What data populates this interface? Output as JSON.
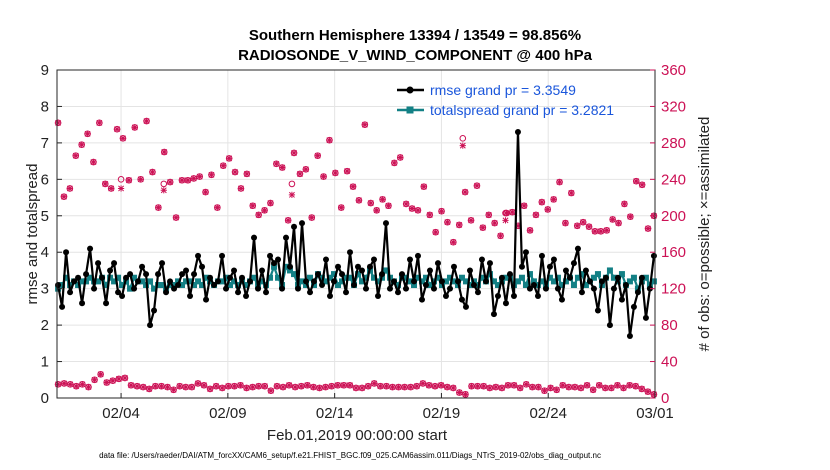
{
  "chart_data": {
    "type": "line",
    "title": "Southern Hemisphere 13394 / 13549 = 98.856%",
    "subtitle": "RADIOSONDE_V_WIND_COMPONENT @ 400 hPa",
    "xlabel": "Feb.01,2019 00:00:00 start",
    "ylabel": "rmse and totalspread",
    "y2label": "# of obs: o=possible; ×=assimilated",
    "footnote": "data file: /Users/raeder/DAI/ATM_forcXX/CAM6_setup/f.e21.FHIST_BGC.f09_025.CAM6assim.011/Diags_NTrS_2019-02/obs_diag_output.nc",
    "xlim": [
      1,
      29
    ],
    "ylim": [
      0,
      9
    ],
    "y2lim": [
      0,
      360
    ],
    "xticks": [
      {
        "value": 4,
        "label": "02/04"
      },
      {
        "value": 9,
        "label": "02/09"
      },
      {
        "value": 14,
        "label": "02/14"
      },
      {
        "value": 19,
        "label": "02/19"
      },
      {
        "value": 24,
        "label": "02/24"
      },
      {
        "value": 29,
        "label": "03/01"
      }
    ],
    "yticks": [
      0,
      1,
      2,
      3,
      4,
      5,
      6,
      7,
      8,
      9
    ],
    "y2ticks": [
      0,
      40,
      80,
      120,
      160,
      200,
      240,
      280,
      320,
      360
    ],
    "legend_position": "top-right",
    "series": [
      {
        "name": "rmse grand pr = 3.3549",
        "color": "#000000",
        "values": [
          3.1,
          2.5,
          4.0,
          2.9,
          3.2,
          3.3,
          2.6,
          3.4,
          4.1,
          3.0,
          3.7,
          3.3,
          2.6,
          3.5,
          3.7,
          2.9,
          2.8,
          3.3,
          3.4,
          3.0,
          3.2,
          3.6,
          3.4,
          2.0,
          2.4,
          3.4,
          3.7,
          2.9,
          3.2,
          3.0,
          3.1,
          3.4,
          3.5,
          2.8,
          3.4,
          3.9,
          3.6,
          2.7,
          3.3,
          3.1,
          3.2,
          3.9,
          3.0,
          3.3,
          3.5,
          2.9,
          3.3,
          2.8,
          3.2,
          4.4,
          3.0,
          3.5,
          2.9,
          3.9,
          3.7,
          3.8,
          3.0,
          4.4,
          3.6,
          4.7,
          3.0,
          4.8,
          3.2,
          2.9,
          3.2,
          3.4,
          3.1,
          3.8,
          2.8,
          3.2,
          3.6,
          3.4,
          2.9,
          4.0,
          3.1,
          3.6,
          3.5,
          3.0,
          3.6,
          3.8,
          2.8,
          3.4,
          4.8,
          3.0,
          3.2,
          2.9,
          3.4,
          3.0,
          3.8,
          3.2,
          3.9,
          2.7,
          3.1,
          3.5,
          3.0,
          3.7,
          3.2,
          2.8,
          3.0,
          3.6,
          3.2,
          2.7,
          2.5,
          3.5,
          3.1,
          2.9,
          3.8,
          3.2,
          3.7,
          2.3,
          2.8,
          3.3,
          2.6,
          3.4,
          2.8,
          7.3,
          3.6,
          4.0,
          3.0,
          3.1,
          2.8,
          3.9,
          3.0,
          3.6,
          3.8,
          3.0,
          2.7,
          3.5,
          3.3,
          3.7,
          4.1,
          2.9,
          3.5,
          3.2,
          3.0,
          2.4,
          3.2,
          3.3,
          2.0,
          3.0,
          3.3,
          2.7,
          3.1,
          1.7,
          2.5,
          2.9,
          3.3,
          2.2,
          3.0,
          3.9
        ]
      },
      {
        "name": "totalspread grand pr = 3.2821",
        "color": "#138085",
        "values": [
          3.0,
          3.1,
          3.3,
          3.1,
          3.2,
          3.1,
          3.2,
          3.2,
          3.3,
          3.2,
          3.2,
          3.3,
          3.1,
          3.3,
          3.2,
          3.3,
          3.1,
          3.2,
          3.0,
          3.3,
          3.2,
          3.2,
          3.1,
          3.2,
          3.0,
          3.1,
          3.1,
          3.0,
          3.1,
          3.1,
          3.2,
          3.1,
          3.2,
          3.2,
          3.1,
          3.2,
          3.1,
          3.3,
          3.2,
          3.1,
          3.2,
          3.2,
          3.3,
          3.1,
          3.2,
          3.1,
          3.2,
          3.1,
          3.2,
          3.3,
          3.1,
          3.2,
          3.1,
          3.3,
          3.6,
          3.3,
          3.1,
          3.6,
          3.5,
          3.4,
          3.1,
          3.2,
          3.1,
          3.3,
          3.1,
          3.4,
          3.3,
          3.2,
          3.3,
          3.4,
          3.1,
          3.2,
          3.3,
          3.3,
          3.1,
          3.4,
          3.2,
          3.3,
          3.5,
          3.3,
          3.2,
          3.3,
          3.5,
          3.3,
          3.2,
          3.1,
          3.3,
          3.3,
          3.2,
          3.1,
          3.3,
          3.2,
          3.3,
          3.1,
          3.2,
          3.3,
          3.1,
          3.2,
          3.3,
          3.2,
          3.1,
          3.3,
          3.2,
          3.1,
          3.2,
          3.1,
          3.3,
          3.2,
          3.4,
          3.2,
          3.1,
          3.2,
          3.3,
          3.3,
          3.1,
          3.2,
          3.3,
          3.1,
          3.4,
          3.2,
          3.1,
          3.2,
          3.1,
          3.3,
          3.2,
          3.3,
          3.1,
          3.2,
          3.3,
          3.1,
          3.3,
          3.4,
          3.1,
          3.2,
          3.3,
          3.4,
          3.1,
          3.3,
          3.5,
          3.3,
          3.2,
          3.4,
          3.1,
          3.2,
          3.3,
          3.0,
          3.2,
          3.3,
          3.1,
          3.2
        ]
      }
    ],
    "obs": {
      "color": "#cc1155",
      "high_possible": [
        302,
        221,
        230,
        266,
        278,
        290,
        259,
        302,
        235,
        230,
        295,
        285,
        239,
        297,
        240,
        304,
        248,
        209,
        270,
        237,
        198,
        239,
        239,
        241,
        243,
        226,
        245,
        209,
        255,
        263,
        248,
        230,
        246,
        211,
        201,
        206,
        214,
        257,
        253,
        195,
        269,
        246,
        251,
        198,
        266,
        243,
        283,
        247,
        209,
        249,
        232,
        217,
        300,
        214,
        206,
        218,
        211,
        258,
        264,
        213,
        208,
        206,
        232,
        201,
        182,
        205,
        193,
        171,
        190,
        226,
        195,
        233,
        187,
        201,
        192,
        178,
        203,
        204,
        189,
        211,
        184,
        201,
        215,
        207,
        218,
        237,
        192,
        225,
        189,
        193,
        188,
        183,
        183,
        184,
        196,
        192,
        213,
        199,
        238,
        234,
        186,
        200
      ],
      "low_possible": [
        15,
        16,
        15,
        13,
        15,
        12,
        20,
        26,
        17,
        19,
        21,
        22,
        14,
        13,
        12,
        10,
        13,
        13,
        12,
        9,
        13,
        12,
        12,
        16,
        14,
        10,
        13,
        11,
        13,
        13,
        14,
        11,
        12,
        13,
        13,
        8,
        13,
        12,
        14,
        12,
        13,
        14,
        12,
        11,
        12,
        13,
        14,
        14,
        14,
        11,
        11,
        13,
        16,
        13,
        13,
        12,
        12,
        12,
        12,
        13,
        16,
        14,
        13,
        14,
        12,
        11,
        6,
        4,
        13,
        13,
        13,
        11,
        12,
        11,
        14,
        14,
        11,
        15,
        12,
        12,
        8,
        11,
        9,
        14,
        12,
        12,
        11,
        14,
        9,
        14,
        11,
        11,
        14,
        11,
        14,
        13,
        10,
        7,
        4
      ],
      "diverge": [
        [
          4,
          240,
          230
        ],
        [
          6,
          235,
          228
        ],
        [
          12,
          235,
          223
        ],
        [
          20,
          285,
          277
        ],
        [
          22,
          203,
          195
        ]
      ]
    }
  }
}
